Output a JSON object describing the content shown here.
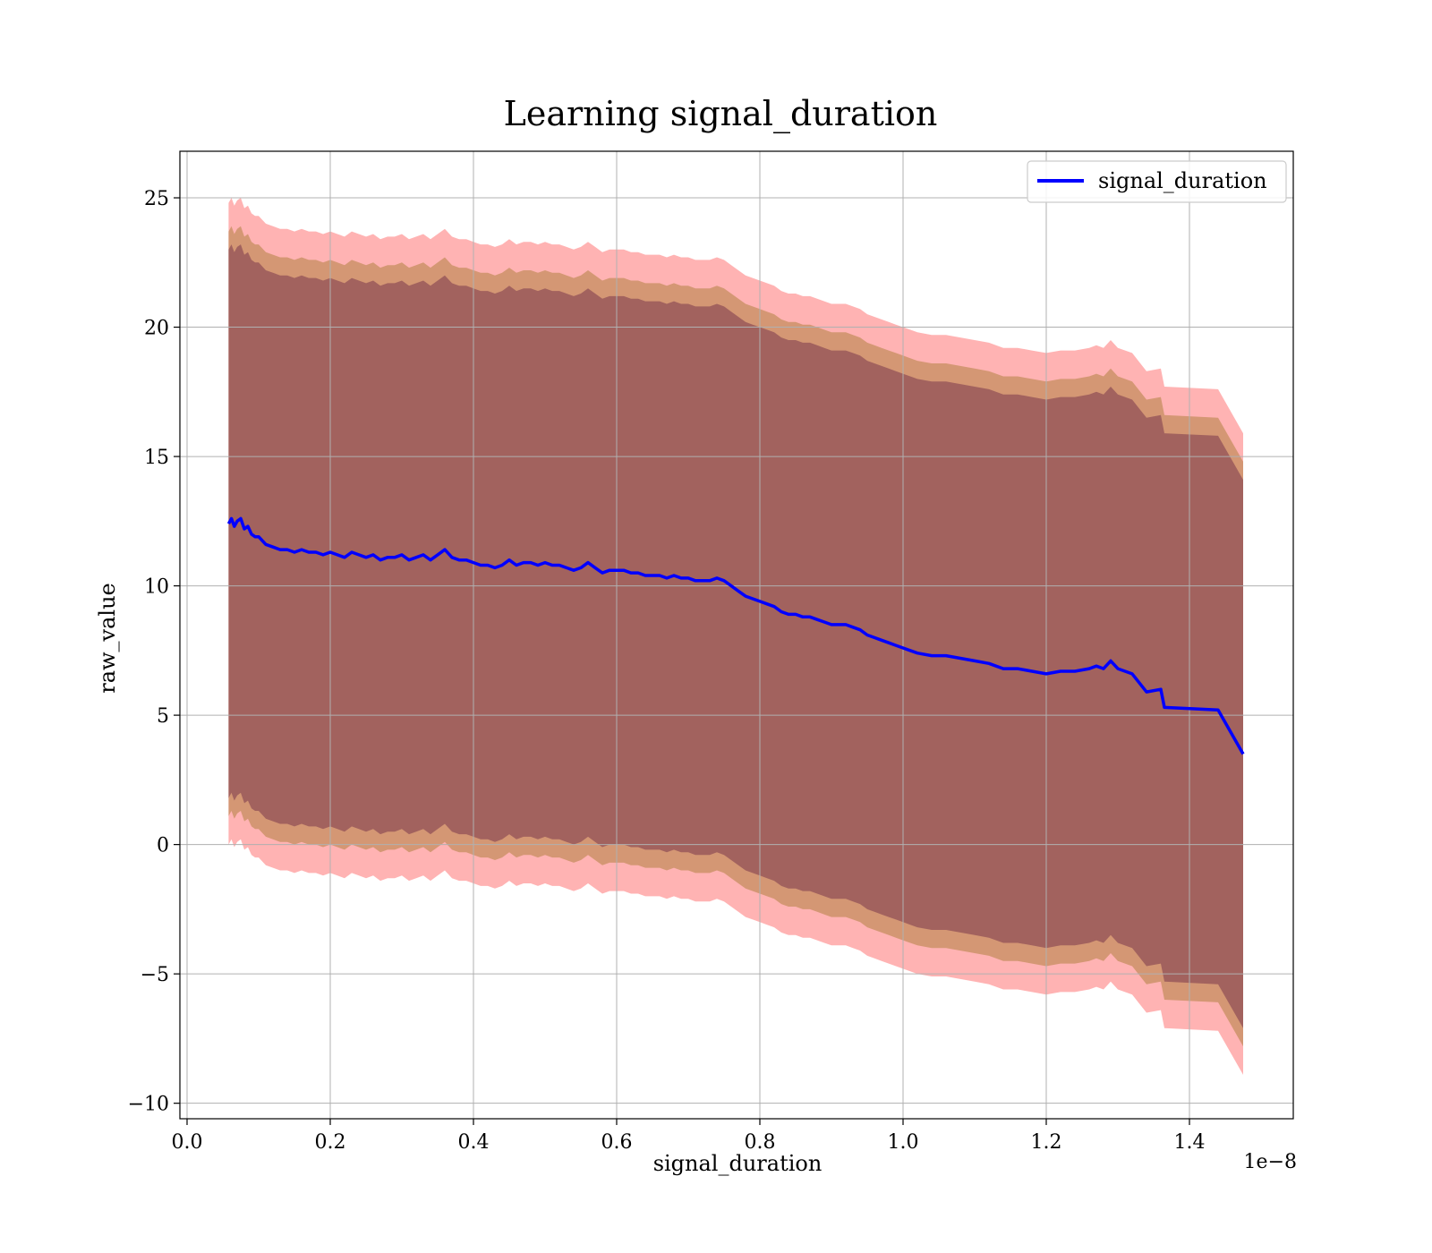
{
  "chart_data": {
    "type": "line",
    "title": "Learning signal_duration",
    "xlabel": "signal_duration",
    "ylabel": "raw_value",
    "x_offset_label": "1e−8",
    "xlim": [
      -0.01,
      1.545
    ],
    "ylim": [
      -10.6,
      26.8
    ],
    "x_ticks": [
      0.0,
      0.2,
      0.4,
      0.6,
      0.8,
      1.0,
      1.2,
      1.4
    ],
    "x_tick_labels": [
      "0.0",
      "0.2",
      "0.4",
      "0.6",
      "0.8",
      "1.0",
      "1.2",
      "1.4"
    ],
    "y_ticks": [
      -10,
      -5,
      0,
      5,
      10,
      15,
      20,
      25
    ],
    "y_tick_labels": [
      "−10",
      "−5",
      "0",
      "5",
      "10",
      "15",
      "20",
      "25"
    ],
    "grid": true,
    "legend_position": "top-right",
    "colors": {
      "line": "#0000ff",
      "outer_band": "#ff8080",
      "middle_band": "#b08040",
      "inner_band": "#804050",
      "grid": "#b0b0b0"
    },
    "series": [
      {
        "name": "signal_duration",
        "x": [
          0.058,
          0.062,
          0.066,
          0.07,
          0.075,
          0.08,
          0.085,
          0.09,
          0.095,
          0.1,
          0.11,
          0.12,
          0.13,
          0.14,
          0.15,
          0.16,
          0.17,
          0.18,
          0.19,
          0.2,
          0.21,
          0.22,
          0.23,
          0.24,
          0.25,
          0.26,
          0.27,
          0.28,
          0.29,
          0.3,
          0.31,
          0.32,
          0.33,
          0.34,
          0.35,
          0.36,
          0.37,
          0.38,
          0.39,
          0.4,
          0.41,
          0.42,
          0.43,
          0.44,
          0.45,
          0.46,
          0.47,
          0.48,
          0.49,
          0.5,
          0.51,
          0.52,
          0.53,
          0.54,
          0.55,
          0.56,
          0.57,
          0.58,
          0.59,
          0.6,
          0.61,
          0.62,
          0.63,
          0.64,
          0.65,
          0.66,
          0.67,
          0.68,
          0.69,
          0.7,
          0.71,
          0.72,
          0.73,
          0.74,
          0.75,
          0.76,
          0.77,
          0.78,
          0.79,
          0.8,
          0.81,
          0.82,
          0.83,
          0.84,
          0.85,
          0.86,
          0.87,
          0.88,
          0.89,
          0.9,
          0.91,
          0.92,
          0.93,
          0.94,
          0.95,
          0.96,
          0.97,
          0.98,
          0.99,
          1.0,
          1.02,
          1.04,
          1.06,
          1.08,
          1.1,
          1.12,
          1.14,
          1.16,
          1.18,
          1.2,
          1.22,
          1.24,
          1.26,
          1.27,
          1.28,
          1.29,
          1.3,
          1.32,
          1.34,
          1.36,
          1.365,
          1.44,
          1.475
        ],
        "values": [
          12.4,
          12.6,
          12.3,
          12.5,
          12.6,
          12.2,
          12.3,
          12.0,
          11.9,
          11.9,
          11.6,
          11.5,
          11.4,
          11.4,
          11.3,
          11.4,
          11.3,
          11.3,
          11.2,
          11.3,
          11.2,
          11.1,
          11.3,
          11.2,
          11.1,
          11.2,
          11.0,
          11.1,
          11.1,
          11.2,
          11.0,
          11.1,
          11.2,
          11.0,
          11.2,
          11.4,
          11.1,
          11.0,
          11.0,
          10.9,
          10.8,
          10.8,
          10.7,
          10.8,
          11.0,
          10.8,
          10.9,
          10.9,
          10.8,
          10.9,
          10.8,
          10.8,
          10.7,
          10.6,
          10.7,
          10.9,
          10.7,
          10.5,
          10.6,
          10.6,
          10.6,
          10.5,
          10.5,
          10.4,
          10.4,
          10.4,
          10.3,
          10.4,
          10.3,
          10.3,
          10.2,
          10.2,
          10.2,
          10.3,
          10.2,
          10.0,
          9.8,
          9.6,
          9.5,
          9.4,
          9.3,
          9.2,
          9.0,
          8.9,
          8.9,
          8.8,
          8.8,
          8.7,
          8.6,
          8.5,
          8.5,
          8.5,
          8.4,
          8.3,
          8.1,
          8.0,
          7.9,
          7.8,
          7.7,
          7.6,
          7.4,
          7.3,
          7.3,
          7.2,
          7.1,
          7.0,
          6.8,
          6.8,
          6.7,
          6.6,
          6.7,
          6.7,
          6.8,
          6.9,
          6.8,
          7.1,
          6.8,
          6.6,
          5.9,
          6.0,
          5.3,
          5.2,
          3.5
        ]
      }
    ],
    "bands": [
      {
        "name": "outer",
        "color_key": "outer_band",
        "offset": 12.4
      },
      {
        "name": "middle",
        "color_key": "middle_band",
        "offset": 11.3
      },
      {
        "name": "inner",
        "color_key": "inner_band",
        "offset": 10.6
      }
    ]
  }
}
